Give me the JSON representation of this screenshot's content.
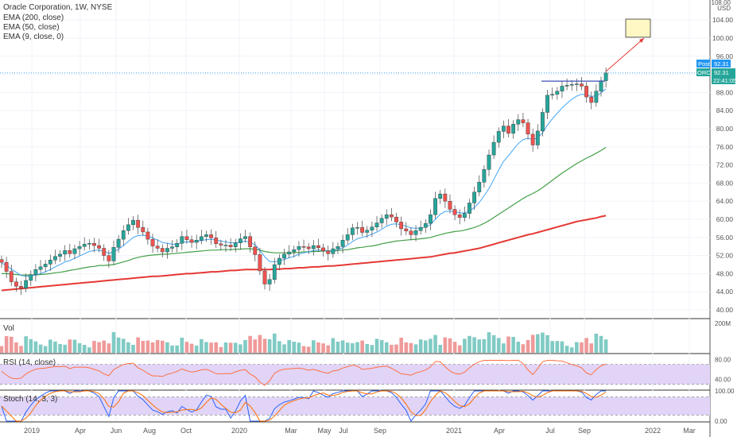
{
  "header": {
    "title": "Oracle Corporation, 1W, NYSE",
    "ind1": "EMA (200, close)",
    "ind2": "EMA (50, close)",
    "ind3": "EMA (9, close, 0)"
  },
  "price_axis": {
    "top_label": "108.00",
    "currency": "USD",
    "ticks": [
      "104.00",
      "100.00",
      "96.00",
      "92.00",
      "88.00",
      "84.00",
      "80.00",
      "76.00",
      "72.00",
      "68.00",
      "64.00",
      "60.00",
      "56.00",
      "52.00",
      "48.00",
      "44.00",
      "40.00"
    ],
    "post_tag": "Post",
    "post_value": "92.31",
    "symbol_tag": "ORCL",
    "symbol_value": "92.31",
    "countdown": "22:41:05"
  },
  "volume_pane": {
    "label": "Vol",
    "axis_label": "200M"
  },
  "rsi_pane": {
    "label": "RSI (14, close)",
    "ticks": [
      "80.00",
      "40.00"
    ]
  },
  "stoch_pane": {
    "label": "Stoch (14, 3, 3)",
    "ticks": [
      "100.00",
      "0.00"
    ]
  },
  "time_axis": [
    "2019",
    "Apr",
    "Jun",
    "Aug",
    "Oct",
    "2020",
    "Mar",
    "May",
    "Jul",
    "Sep",
    "2021",
    "Apr",
    "Jul",
    "Sep",
    "2022",
    "Mar"
  ],
  "colors": {
    "up": "#26a69a",
    "down": "#ef5350",
    "vol_up": "#80cbc4",
    "vol_down": "#ef9a9a",
    "ema200": "#e53935",
    "ema50": "#43a047",
    "ema9": "#42a5f5",
    "rsi": "#ff7043",
    "rsi_band": "#e1d4f7",
    "stoch_k": "#2962ff",
    "stoch_d": "#ff6d00",
    "tag_blue": "#2196f3",
    "tag_green": "#26a69a"
  },
  "chart_data": {
    "type": "candlestick",
    "symbol": "ORCL",
    "interval": "1W",
    "ylim": [
      40,
      108
    ],
    "resistance_level": 90.5,
    "target_box": [
      100.2,
      104.2
    ],
    "closes": [
      50.5,
      48.5,
      46.2,
      45.2,
      44.8,
      46.5,
      47.8,
      48.9,
      49.5,
      50.1,
      51.0,
      51.8,
      52.3,
      53.1,
      52.4,
      53.5,
      54.0,
      54.5,
      54.7,
      54.2,
      53.6,
      52.0,
      50.8,
      53.8,
      55.6,
      57.5,
      58.8,
      59.8,
      58.2,
      57.2,
      55.6,
      54.1,
      53.6,
      52.8,
      53.6,
      53.9,
      54.7,
      56.2,
      55.5,
      54.9,
      55.4,
      56.2,
      56.6,
      55.9,
      54.6,
      54.3,
      54.3,
      53.9,
      54.8,
      55.7,
      56.2,
      53.9,
      52.2,
      48.6,
      45.7,
      46.7,
      50.0,
      51.4,
      52.3,
      52.8,
      53.3,
      54.0,
      53.9,
      53.5,
      54.2,
      53.7,
      53.0,
      52.4,
      53.5,
      54.0,
      55.4,
      56.6,
      58.1,
      58.2,
      57.1,
      57.6,
      58.3,
      59.2,
      60.2,
      61.0,
      60.5,
      59.4,
      57.9,
      57.4,
      56.6,
      57.5,
      58.2,
      59.1,
      61.0,
      64.6,
      65.6,
      64.0,
      62.2,
      61.0,
      60.4,
      61.3,
      63.6,
      66.0,
      68.2,
      71.0,
      74.2,
      77.0,
      79.4,
      80.6,
      79.0,
      81.0,
      82.0,
      81.3,
      78.8,
      76.4,
      79.5,
      83.6,
      87.4,
      87.6,
      88.3,
      89.4,
      89.6,
      89.8,
      89.9,
      89.4,
      87.0,
      85.8,
      88.3,
      90.6,
      92.31
    ],
    "ema9": [
      50.3,
      49.9,
      49.0,
      48.3,
      47.6,
      47.4,
      47.5,
      47.7,
      48.0,
      48.4,
      48.9,
      49.5,
      50.0,
      50.6,
      50.9,
      51.4,
      51.9,
      52.4,
      52.9,
      53.1,
      53.2,
      52.9,
      52.5,
      52.8,
      53.4,
      54.2,
      55.1,
      56.0,
      56.4,
      56.5,
      56.3,
      55.9,
      55.4,
      54.9,
      54.7,
      54.5,
      54.5,
      54.9,
      55.0,
      55.0,
      55.1,
      55.3,
      55.5,
      55.6,
      55.4,
      55.2,
      55.0,
      54.8,
      54.8,
      55.0,
      55.2,
      54.9,
      54.4,
      53.2,
      51.7,
      50.7,
      50.6,
      50.8,
      51.1,
      51.5,
      51.8,
      52.3,
      52.6,
      52.8,
      53.1,
      53.2,
      53.2,
      53.0,
      53.1,
      53.3,
      53.7,
      54.3,
      55.1,
      55.7,
      56.0,
      56.3,
      56.7,
      57.2,
      57.8,
      58.5,
      58.9,
      59.0,
      58.8,
      58.5,
      58.1,
      58.0,
      58.1,
      58.3,
      58.8,
      60.0,
      61.1,
      61.7,
      61.8,
      61.7,
      61.4,
      61.4,
      61.8,
      62.6,
      63.7,
      65.2,
      66.8,
      68.8,
      70.9,
      72.8,
      74.0,
      75.4,
      76.7,
      77.6,
      77.9,
      77.6,
      78.0,
      79.1,
      80.8,
      82.2,
      83.4,
      84.6,
      85.6,
      86.5,
      87.2,
      87.6,
      87.5,
      87.1,
      87.3,
      87.9,
      88.8
    ],
    "ema50": [
      48.0,
      48.0,
      47.9,
      47.8,
      47.7,
      47.7,
      47.7,
      47.7,
      47.8,
      47.9,
      48.0,
      48.2,
      48.3,
      48.5,
      48.7,
      48.9,
      49.1,
      49.3,
      49.5,
      49.6,
      49.8,
      49.8,
      49.9,
      50.0,
      50.3,
      50.6,
      50.9,
      51.3,
      51.6,
      51.8,
      52.0,
      52.1,
      52.2,
      52.3,
      52.3,
      52.4,
      52.5,
      52.6,
      52.7,
      52.8,
      52.9,
      53.0,
      53.1,
      53.2,
      53.2,
      53.3,
      53.3,
      53.3,
      53.4,
      53.4,
      53.5,
      53.5,
      53.4,
      53.2,
      52.9,
      52.7,
      52.6,
      52.6,
      52.6,
      52.6,
      52.6,
      52.7,
      52.8,
      52.8,
      52.9,
      52.9,
      53.0,
      53.0,
      53.0,
      53.1,
      53.2,
      53.3,
      53.5,
      53.7,
      53.8,
      54.0,
      54.1,
      54.3,
      54.6,
      54.8,
      55.0,
      55.2,
      55.3,
      55.4,
      55.5,
      55.6,
      55.7,
      55.8,
      56.0,
      56.3,
      56.6,
      56.9,
      57.1,
      57.3,
      57.4,
      57.6,
      57.9,
      58.2,
      58.6,
      59.1,
      59.7,
      60.4,
      61.1,
      61.8,
      62.5,
      63.2,
      63.9,
      64.6,
      65.2,
      65.7,
      66.3,
      67.0,
      67.8,
      68.6,
      69.4,
      70.2,
      70.9,
      71.6,
      72.3,
      72.9,
      73.5,
      74.0,
      74.6,
      75.2,
      75.9
    ],
    "ema200": [
      44.3,
      44.4,
      44.5,
      44.6,
      44.7,
      44.8,
      44.9,
      45.0,
      45.1,
      45.2,
      45.3,
      45.4,
      45.5,
      45.6,
      45.7,
      45.8,
      45.9,
      46.0,
      46.1,
      46.2,
      46.3,
      46.4,
      46.5,
      46.6,
      46.7,
      46.8,
      46.9,
      47.0,
      47.1,
      47.2,
      47.3,
      47.4,
      47.4,
      47.5,
      47.6,
      47.7,
      47.8,
      47.9,
      48.0,
      48.0,
      48.1,
      48.2,
      48.3,
      48.4,
      48.4,
      48.5,
      48.6,
      48.7,
      48.7,
      48.8,
      48.9,
      48.9,
      48.9,
      48.9,
      48.9,
      48.9,
      49.0,
      49.0,
      49.1,
      49.1,
      49.2,
      49.3,
      49.3,
      49.4,
      49.5,
      49.5,
      49.6,
      49.7,
      49.7,
      49.8,
      49.9,
      50.0,
      50.1,
      50.2,
      50.3,
      50.4,
      50.5,
      50.6,
      50.7,
      50.8,
      50.9,
      51.0,
      51.1,
      51.2,
      51.3,
      51.4,
      51.5,
      51.6,
      51.7,
      51.9,
      52.1,
      52.3,
      52.5,
      52.6,
      52.8,
      53.0,
      53.2,
      53.4,
      53.6,
      53.9,
      54.2,
      54.5,
      54.8,
      55.1,
      55.4,
      55.7,
      56.0,
      56.3,
      56.6,
      56.8,
      57.1,
      57.4,
      57.7,
      58.0,
      58.3,
      58.6,
      58.9,
      59.2,
      59.5,
      59.7,
      59.9,
      60.1,
      60.3,
      60.6,
      60.8
    ],
    "volume_scale_max_millions": 200,
    "rsi_ylim": [
      20,
      90
    ],
    "rsi_levels": [
      70,
      30
    ],
    "stoch_ylim": [
      0,
      100
    ],
    "stoch_levels": [
      80,
      20
    ]
  }
}
